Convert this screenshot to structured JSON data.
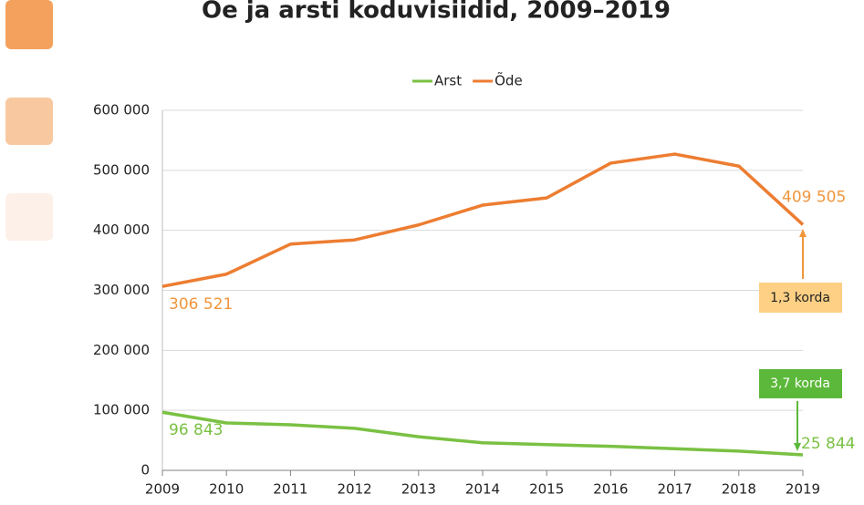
{
  "chart_data": {
    "type": "line",
    "title": "Õe ja arsti koduvisiidid, 2009–2019",
    "categories": [
      "2009",
      "2010",
      "2011",
      "2012",
      "2013",
      "2014",
      "2015",
      "2016",
      "2017",
      "2018",
      "2019"
    ],
    "series": [
      {
        "name": "Arst",
        "color": "#7ac143",
        "label_color": "#7ac143",
        "values": [
          96843,
          79000,
          76000,
          70000,
          56000,
          46000,
          43000,
          40000,
          36000,
          32000,
          25844
        ],
        "value_labels": [
          "96 843",
          null,
          null,
          null,
          null,
          null,
          null,
          null,
          null,
          null,
          "25 844"
        ]
      },
      {
        "name": "Õde",
        "color": "#ed7d31",
        "label_color": "#f0963c",
        "values": [
          306521,
          327000,
          377000,
          384000,
          409000,
          442000,
          454000,
          512000,
          527000,
          507000,
          409505
        ],
        "value_labels": [
          "306 521",
          null,
          null,
          null,
          null,
          null,
          null,
          null,
          null,
          null,
          "409 505"
        ]
      }
    ],
    "ylim": [
      0,
      600000
    ],
    "yticks": [
      0,
      {
        "value": 100000,
        "label": "100 000"
      },
      {
        "value": 200000,
        "label": "200 000"
      },
      {
        "value": 300000,
        "label": "300 000"
      },
      {
        "value": 400000,
        "label": "400 000"
      },
      {
        "value": 500000,
        "label": "500 000"
      },
      {
        "value": 600000,
        "label": "600 000"
      }
    ],
    "grid": true,
    "legend": "top",
    "annotations": [
      {
        "text": "1,3 korda",
        "color": "#fdd085"
      },
      {
        "text": "3,7 korda",
        "color": "#5cb83a"
      }
    ]
  }
}
